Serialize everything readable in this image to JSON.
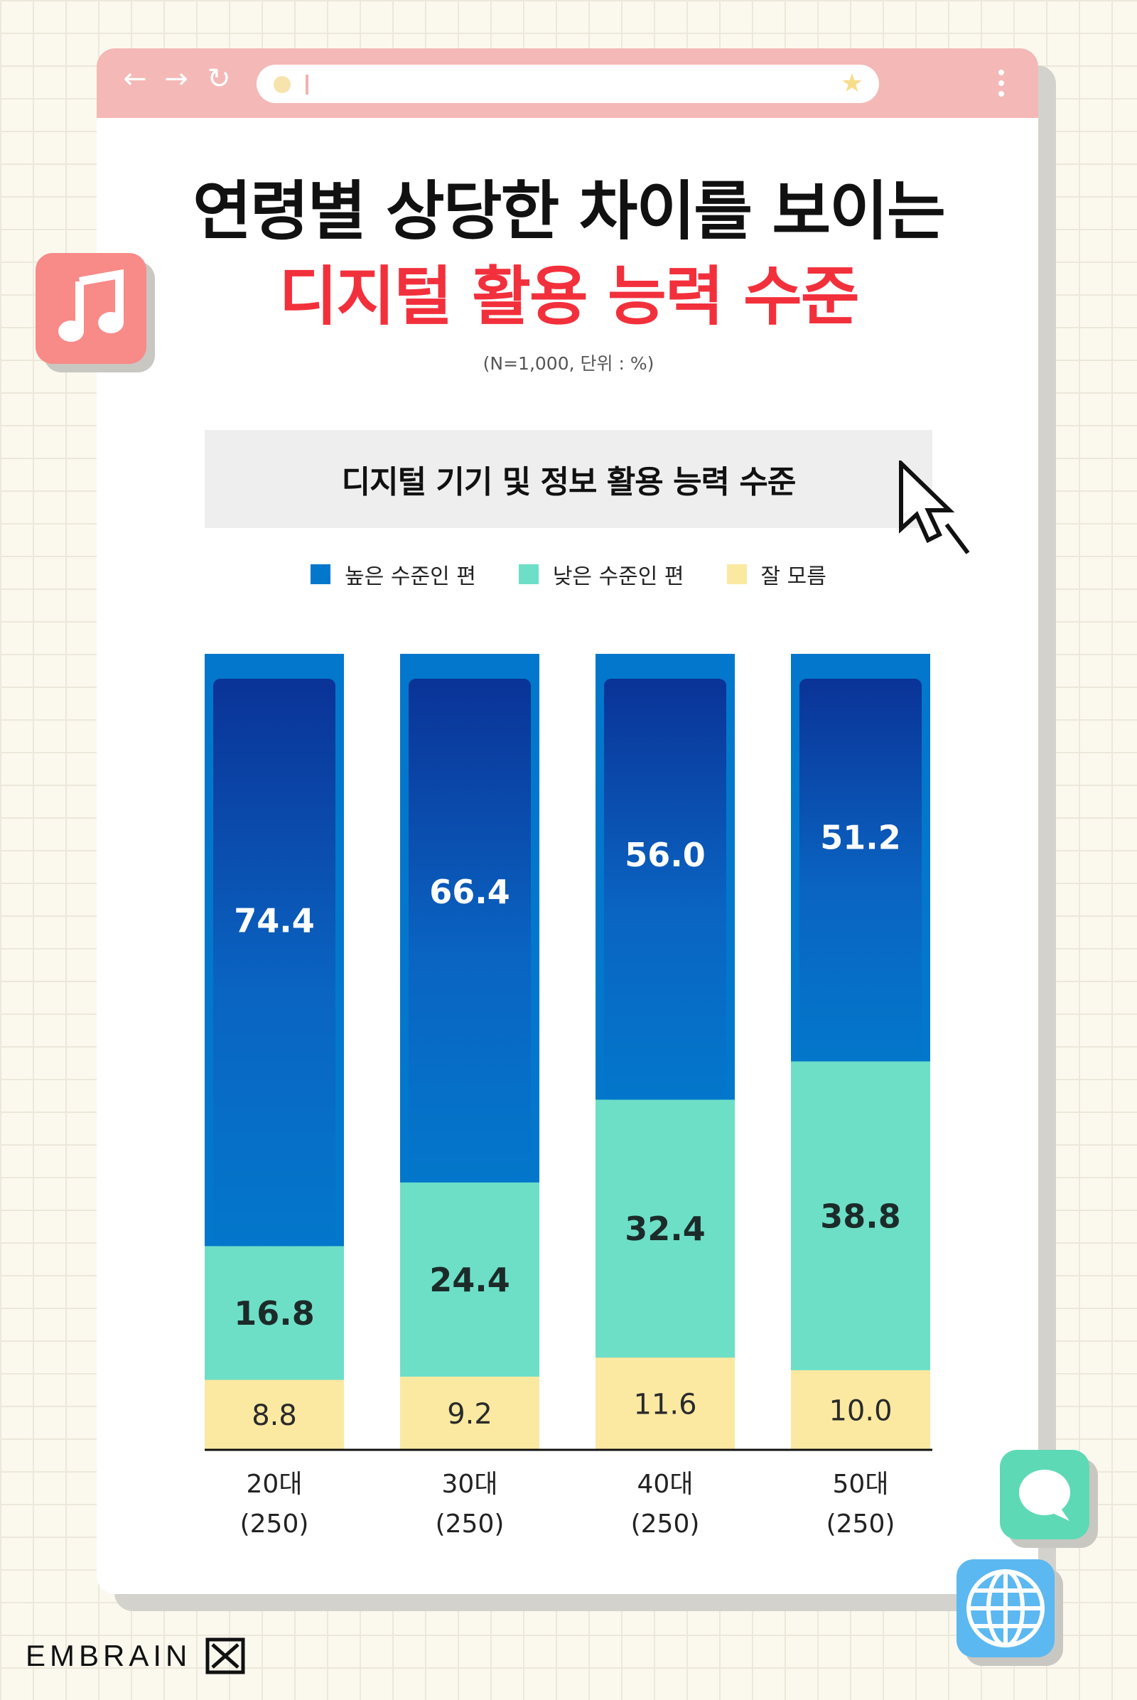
{
  "title_line1": "연령별 상당한 차이를 보이는",
  "title_line2": "디지털 활용 능력 수준",
  "subtitle": "(N=1,000, 단위 : %)",
  "chart_data": {
    "type": "bar",
    "stacked": true,
    "title": "디지털 기기 및 정보 활용 능력 수준",
    "categories": [
      "20대",
      "30대",
      "40대",
      "50대"
    ],
    "category_n": [
      "(250)",
      "(250)",
      "(250)",
      "(250)"
    ],
    "series": [
      {
        "name": "높은 수준인 편",
        "color": "#0377cb",
        "values": [
          74.4,
          66.4,
          56.0,
          51.2
        ]
      },
      {
        "name": "낮은 수준인 편",
        "color": "#6ddfc7",
        "values": [
          16.8,
          24.4,
          32.4,
          38.8
        ]
      },
      {
        "name": "잘 모름",
        "color": "#fbe9a2",
        "values": [
          8.8,
          9.2,
          11.6,
          10.0
        ]
      }
    ],
    "legend_position": "top-center",
    "ylim": [
      0,
      100
    ],
    "grid": false
  },
  "brand": "EMBRAIN",
  "colors": {
    "accent_red": "#f2303c",
    "titlebar": "#f4b8b6",
    "dark_blue": "#0a3a9c"
  },
  "icons": [
    "back-arrow-icon",
    "forward-arrow-icon",
    "reload-icon",
    "star-icon",
    "music-note-icon",
    "chat-bubble-icon",
    "globe-icon",
    "cursor-icon"
  ]
}
